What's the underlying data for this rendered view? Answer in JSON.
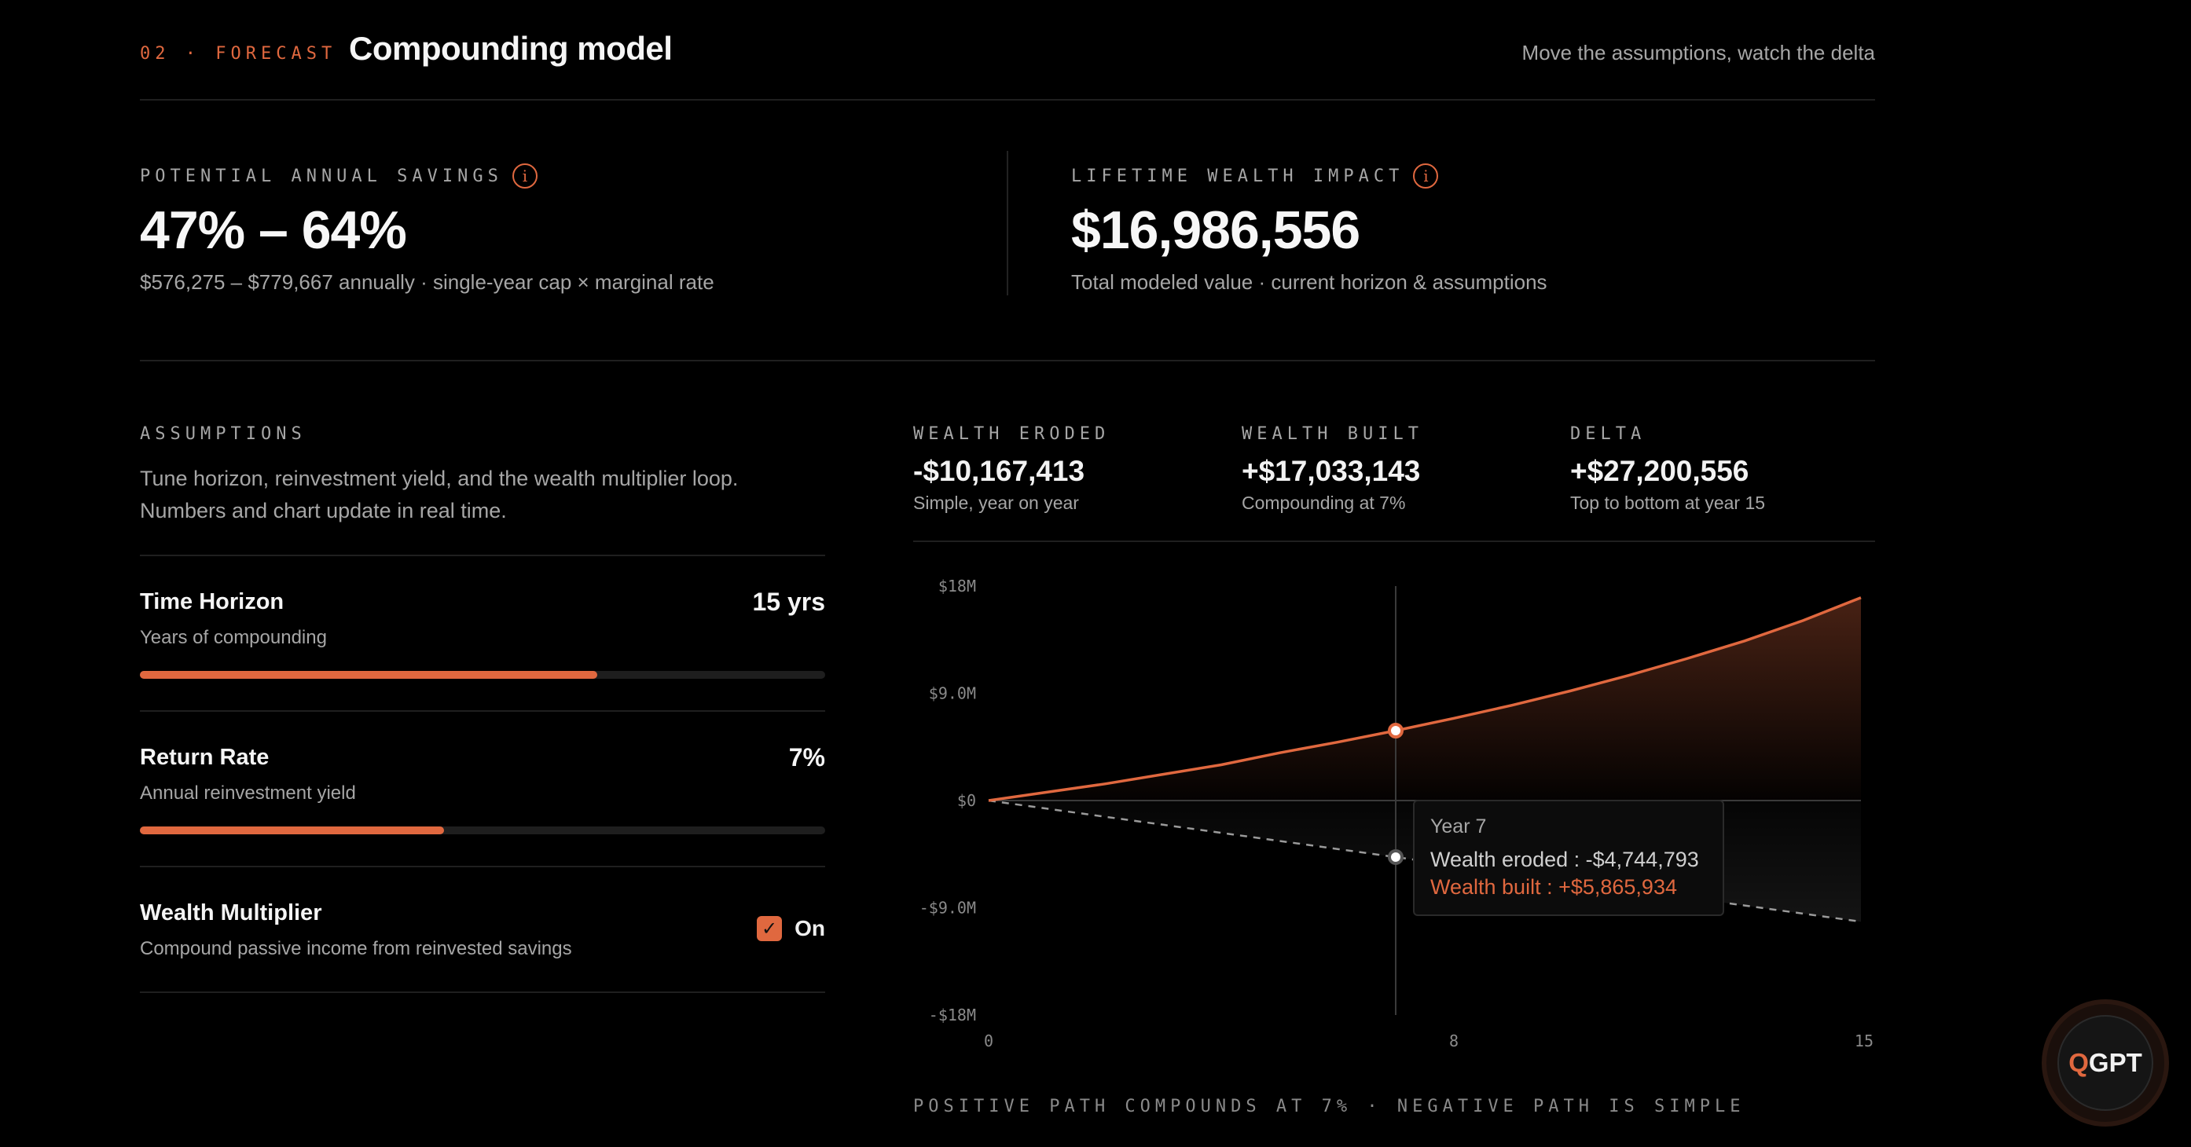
{
  "header": {
    "eyebrow": "02 · FORECAST",
    "title": "Compounding model",
    "note": "Move the assumptions, watch the delta"
  },
  "kpis": {
    "savings": {
      "label": "POTENTIAL ANNUAL SAVINGS",
      "value": "47% – 64%",
      "sub": "$576,275 – $779,667 annually · single-year cap × marginal rate"
    },
    "lifetime": {
      "label": "LIFETIME WEALTH IMPACT",
      "value": "$16,986,556",
      "sub": "Total modeled value · current horizon & assumptions"
    },
    "info_icon_glyph": "i"
  },
  "assumptions": {
    "label": "ASSUMPTIONS",
    "description": "Tune horizon, reinvestment yield, and the wealth multiplier loop. Numbers and chart update in real time.",
    "time_horizon": {
      "title": "Time Horizon",
      "sub": "Years of compounding",
      "value": "15 yrs",
      "fill_fraction": 0.667
    },
    "return_rate": {
      "title": "Return Rate",
      "sub": "Annual reinvestment yield",
      "value": "7%",
      "fill_fraction": 0.444
    },
    "multiplier": {
      "title": "Wealth Multiplier",
      "sub": "Compound passive income from reinvested savings",
      "checked": true,
      "state_label": "On",
      "check_glyph": "✓"
    }
  },
  "stats": {
    "eroded": {
      "label": "WEALTH ERODED",
      "value": "-$10,167,413",
      "sub": "Simple, year on year"
    },
    "built": {
      "label": "WEALTH BUILT",
      "value": "+$17,033,143",
      "sub": "Compounding at 7%"
    },
    "delta": {
      "label": "DELTA",
      "value": "+$27,200,556",
      "sub": "Top to bottom at year 15"
    }
  },
  "colors": {
    "accent": "#e0683f",
    "background": "#000000",
    "muted": "#a6a6a6",
    "eroded_line": "#9a9a9a"
  },
  "chart_data": {
    "type": "area",
    "x_range": [
      0,
      15
    ],
    "ylim": [
      -18000000,
      18000000
    ],
    "x_tick_labels": [
      "0",
      "8",
      "15"
    ],
    "x_tick_values": [
      0,
      8,
      15
    ],
    "y_tick_labels": [
      "$18M",
      "$9.0M",
      "$0",
      "-$9.0M",
      "-$18M"
    ],
    "y_tick_values": [
      18000000,
      9000000,
      0,
      -9000000,
      -18000000
    ],
    "series": [
      {
        "key": "built",
        "x": [
          0,
          1,
          2,
          3,
          4,
          5,
          6,
          7,
          8,
          9,
          10,
          11,
          12,
          13,
          14,
          15
        ],
        "values": [
          0,
          700000,
          1400000,
          2200000,
          3000000,
          4000000,
          4900000,
          5865934,
          6900000,
          8000000,
          9200000,
          10500000,
          11900000,
          13400000,
          15100000,
          17033143
        ]
      },
      {
        "key": "eroded",
        "x": [
          0,
          1,
          2,
          3,
          4,
          5,
          6,
          7,
          8,
          9,
          10,
          11,
          12,
          13,
          14,
          15
        ],
        "values": [
          0,
          -677828,
          -1355655,
          -2033483,
          -2711310,
          -3389138,
          -4066965,
          -4744793,
          -5422621,
          -6100448,
          -6778276,
          -7456103,
          -8133931,
          -8811758,
          -9489586,
          -10167413
        ]
      }
    ],
    "hover_x": 7,
    "tooltip": {
      "title": "Year 7",
      "eroded": "Wealth eroded : -$4,744,793",
      "built": "Wealth built : +$5,865,934"
    },
    "note": "POSITIVE PATH COMPOUNDS AT 7% · NEGATIVE PATH IS SIMPLE"
  },
  "badge": {
    "q": "Q",
    "rest": "GPT"
  }
}
